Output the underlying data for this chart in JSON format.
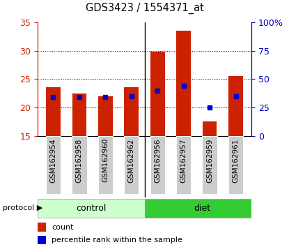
{
  "title": "GDS3423 / 1554371_at",
  "samples": [
    "GSM162954",
    "GSM162958",
    "GSM162960",
    "GSM162962",
    "GSM162956",
    "GSM162957",
    "GSM162959",
    "GSM162961"
  ],
  "groups": [
    "control",
    "control",
    "control",
    "control",
    "diet",
    "diet",
    "diet",
    "diet"
  ],
  "red_tops": [
    23.5,
    22.5,
    22.0,
    23.5,
    29.8,
    33.5,
    17.5,
    25.5
  ],
  "blue_vals": [
    21.8,
    21.8,
    21.8,
    22.0,
    23.0,
    23.8,
    20.0,
    22.0
  ],
  "y_min": 15,
  "y_max": 35,
  "y_ticks": [
    15,
    20,
    25,
    30,
    35
  ],
  "right_ticks": [
    0,
    25,
    50,
    75,
    100
  ],
  "right_labels": [
    "0",
    "25",
    "50",
    "75",
    "100%"
  ],
  "bar_color": "#cc2200",
  "blue_color": "#0000cc",
  "control_color": "#ccffcc",
  "diet_color": "#33cc33",
  "label_bg_color": "#cccccc",
  "figsize": [
    4.15,
    3.54
  ],
  "dpi": 100,
  "n_control": 4,
  "n_diet": 4
}
